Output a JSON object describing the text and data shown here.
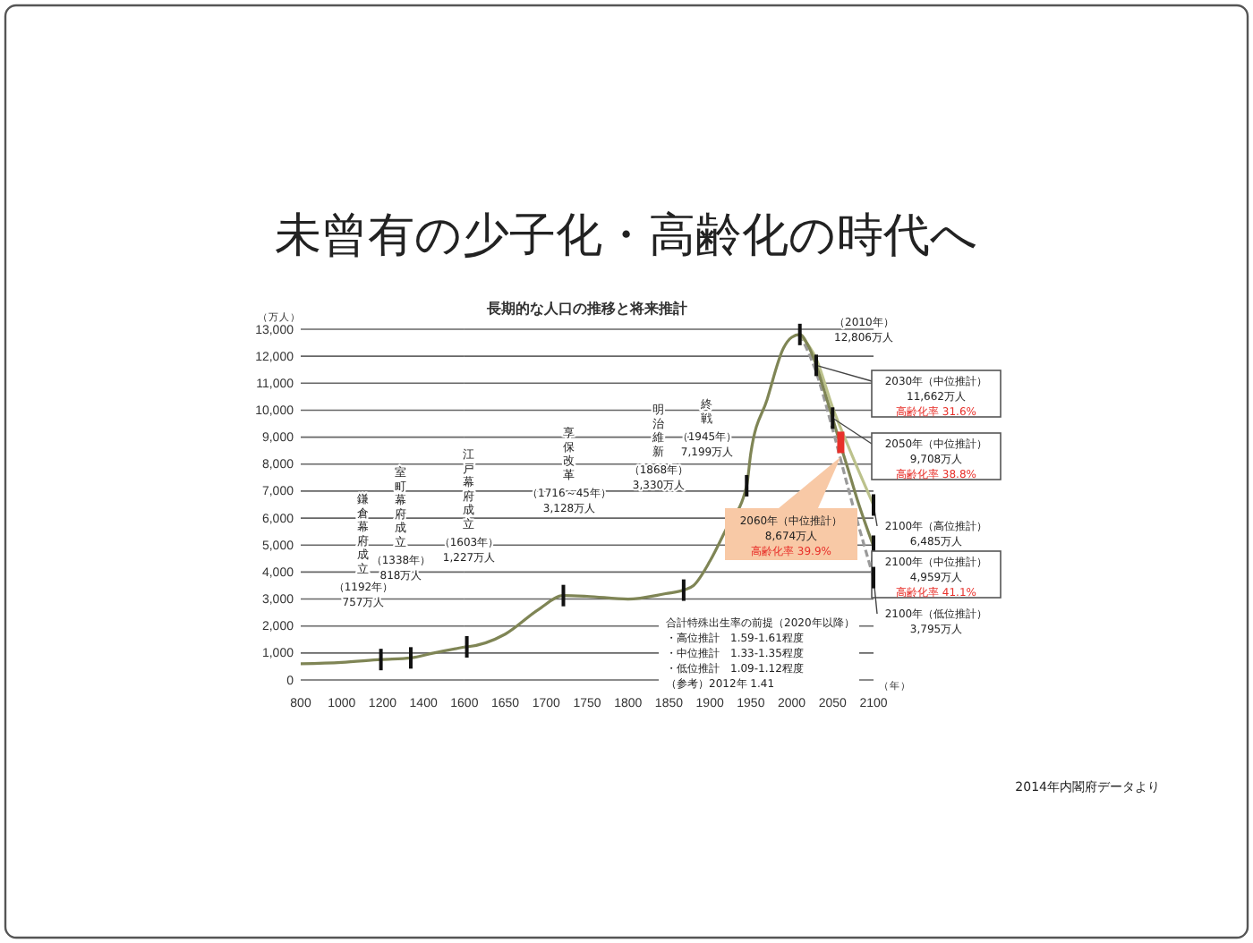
{
  "chart_data": [
    {
      "type": "line",
      "ylabel": "（万人）",
      "xlim": [
        800,
        1600
      ],
      "xticks": [
        800,
        1000,
        1200,
        1400
      ],
      "ylim": [
        0,
        13000
      ],
      "yticks": [
        0,
        {
          "value": 1000,
          "label": "1,000"
        },
        {
          "value": 2000,
          "label": "2,000"
        },
        {
          "value": 3000,
          "label": "3,000"
        },
        {
          "value": 4000,
          "label": "4,000"
        },
        {
          "value": 5000,
          "label": "5,000"
        },
        {
          "value": 6000,
          "label": "6,000"
        },
        {
          "value": 7000,
          "label": "7,000"
        },
        {
          "value": 8000,
          "label": "8,000"
        },
        {
          "value": 9000,
          "label": "9,000"
        },
        {
          "value": 10000,
          "label": "10,000"
        },
        {
          "value": 11000,
          "label": "11,000"
        },
        {
          "value": 12000,
          "label": "12,000"
        },
        {
          "value": 13000,
          "label": "13,000"
        }
      ],
      "grid": "y",
      "series": [
        {
          "color": "#7f8555",
          "line_style": "solid",
          "x": [
            800,
            1000,
            1192,
            1338,
            1450,
            1600
          ],
          "values": [
            600,
            650,
            757,
            818,
            1000,
            1220
          ]
        }
      ],
      "annotations": [
        "鎌倉幕府成立",
        "（1192年）",
        "757万人",
        "室町幕府成立",
        "（1338年）",
        "818万人"
      ]
    },
    {
      "type": "line",
      "title": "未曾有の少子化・高齢化の時代へ",
      "subtitle": "長期的な人口の推移と将来推計",
      "xlabel": "（年）",
      "xlim": [
        1600,
        2100
      ],
      "xticks": [
        1600,
        1650,
        1700,
        1750,
        1800,
        1850,
        1900,
        1950,
        2000,
        2050,
        2100
      ],
      "ylim": [
        0,
        13000
      ],
      "yticks": [
        0,
        1000,
        2000,
        3000,
        4000,
        5000,
        6000,
        7000,
        8000,
        9000,
        10000,
        11000,
        12000,
        13000
      ],
      "tick_labels": "x",
      "grid": "y",
      "series": [
        {
          "color": "#7f8555",
          "line_style": "solid",
          "x": [
            1600,
            1603,
            1650,
            1690,
            1721,
            1750,
            1800,
            1846,
            1868,
            1880,
            1900,
            1920,
            1945,
            1950,
            1970,
            1990,
            2000,
            2010,
            2020,
            2030,
            2040,
            2050,
            2060,
            2070,
            2080,
            2090,
            2100
          ],
          "values": [
            1220,
            1227,
            1700,
            2600,
            3128,
            3100,
            3000,
            3200,
            3330,
            3500,
            4400,
            5600,
            7199,
            8400,
            10400,
            12300,
            12700,
            12806,
            12400,
            11662,
            10700,
            9708,
            8674,
            7700,
            6700,
            5800,
            4959
          ]
        },
        {
          "color": "#bcc28c",
          "line_style": "solid",
          "x": [
            2010,
            2030,
            2050,
            2070,
            2100
          ],
          "values": [
            12806,
            11900,
            10100,
            8600,
            6485
          ]
        },
        {
          "color": "#9a9a9a",
          "line_style": "dashed",
          "x": [
            2010,
            2030,
            2050,
            2070,
            2100
          ],
          "values": [
            12806,
            11400,
            9300,
            7000,
            3795
          ]
        }
      ],
      "annotations": [
        "江戸幕府成立",
        "（1603年）",
        "1,227万人",
        "享保改革",
        "（1716～45年）",
        "3,128万人",
        "明治維新",
        "（1868年）",
        "3,330万人",
        "終戦",
        "（1945年）",
        "7,199万人",
        "（2010年）",
        "12,806万人",
        "2030年（中位推計）",
        "11,662万人",
        "高齢化率 31.6%",
        "2050年（中位推計）",
        "9,708万人",
        "高齢化率 38.8%",
        "2060年（中位推計）",
        "8,674万人",
        "高齢化率 39.9%",
        "2100年（高位推計）",
        "6,485万人",
        "2100年（中位推計）",
        "4,959万人",
        "高齢化率 41.1%",
        "2100年（低位推計）",
        "3,795万人",
        "合計特殊出生率の前提（2020年以降）",
        "・高位推計　1.59-1.61程度",
        "・中位推計　1.33-1.35程度",
        "・低位推計　1.09-1.12程度",
        "（参考）2012年 1.41",
        "2014年内閣府データより"
      ]
    }
  ]
}
